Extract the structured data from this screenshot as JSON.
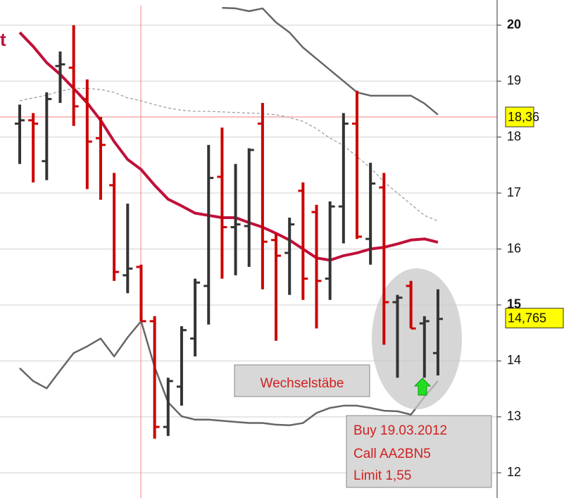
{
  "chart_data": {
    "type": "ohlc",
    "title": "t",
    "ylim": [
      11.55,
      20.45
    ],
    "yticks": [
      12,
      13,
      14,
      15,
      16,
      17,
      18,
      19,
      20
    ],
    "grid": true,
    "ohlc": {
      "up_color": "#333333",
      "down_color": "#cc0000",
      "open": [
        18.24,
        18.3,
        17.57,
        19.27,
        19.24,
        18.68,
        17.98,
        17.14,
        15.53,
        15.68,
        14.71,
        12.82,
        13.54,
        14.4,
        15.34,
        17.29,
        16.39,
        16.41,
        18.24,
        16.16,
        15.93,
        17.04,
        16.66,
        15.47,
        16.76,
        18.24,
        16.18,
        17.1,
        15.05,
        15.34,
        14.67,
        14.14
      ],
      "high": [
        18.58,
        18.43,
        18.8,
        19.53,
        20.0,
        19.03,
        18.36,
        17.36,
        16.81,
        15.72,
        14.8,
        13.7,
        14.62,
        15.47,
        17.86,
        18.17,
        17.52,
        17.8,
        18.61,
        16.28,
        16.56,
        17.19,
        16.79,
        16.85,
        18.43,
        18.83,
        17.54,
        17.36,
        15.18,
        15.43,
        14.8,
        15.28
      ],
      "low": [
        17.52,
        17.19,
        17.23,
        18.61,
        18.2,
        17.07,
        16.88,
        15.43,
        15.21,
        14.71,
        12.61,
        12.66,
        13.2,
        14.08,
        14.65,
        15.47,
        15.53,
        15.68,
        15.28,
        14.36,
        15.18,
        15.09,
        14.58,
        15.09,
        16.1,
        16.18,
        15.72,
        14.29,
        13.7,
        14.58,
        13.7,
        13.74
      ],
      "close": [
        18.3,
        18.24,
        18.68,
        19.3,
        18.55,
        17.92,
        17.86,
        15.59,
        15.65,
        14.71,
        12.82,
        13.64,
        14.55,
        15.4,
        17.27,
        16.39,
        16.44,
        17.77,
        16.13,
        15.88,
        16.44,
        15.47,
        15.43,
        16.76,
        18.24,
        16.22,
        17.17,
        15.05,
        15.13,
        14.58,
        14.71,
        14.75
      ]
    },
    "lines": [
      {
        "color": "#c0103a",
        "width": 4,
        "values": [
          19.87,
          19.62,
          19.33,
          19.12,
          18.87,
          18.61,
          18.3,
          17.92,
          17.6,
          17.42,
          17.14,
          16.89,
          16.77,
          16.64,
          16.6,
          16.56,
          16.56,
          16.47,
          16.39,
          16.28,
          16.16,
          16.0,
          15.84,
          15.8,
          15.88,
          15.93,
          16.0,
          16.03,
          16.09,
          16.16,
          16.18,
          16.12
        ]
      },
      {
        "color": "#666666",
        "width": 2.5,
        "values": [
          null,
          null,
          null,
          null,
          null,
          null,
          null,
          null,
          null,
          null,
          null,
          null,
          null,
          null,
          null,
          20.31,
          20.3,
          20.25,
          20.3,
          20.05,
          19.87,
          19.6,
          19.4,
          19.2,
          19.0,
          18.8,
          18.74,
          18.74,
          18.74,
          18.74,
          18.6,
          18.4
        ]
      },
      {
        "color": "#666666",
        "width": 2.5,
        "values": [
          13.87,
          13.64,
          13.51,
          13.83,
          14.14,
          14.26,
          14.4,
          14.08,
          14.42,
          14.71,
          13.89,
          13.26,
          13.01,
          12.95,
          12.95,
          12.93,
          12.91,
          12.89,
          12.89,
          12.86,
          12.85,
          12.89,
          13.07,
          13.16,
          13.2,
          13.2,
          13.16,
          13.11,
          13.1,
          13.04,
          13.36,
          13.64
        ]
      },
      {
        "color": "#999999",
        "width": 1.2,
        "dashed": true,
        "values": [
          18.65,
          18.7,
          18.75,
          18.82,
          18.87,
          18.87,
          18.85,
          18.8,
          18.7,
          18.65,
          18.58,
          18.52,
          18.48,
          18.46,
          18.46,
          18.45,
          18.44,
          18.43,
          18.42,
          18.4,
          18.35,
          18.28,
          18.15,
          17.98,
          17.85,
          17.65,
          17.45,
          17.2,
          17.0,
          16.8,
          16.6,
          16.5
        ]
      }
    ],
    "crosshair": {
      "value": 18.36,
      "label": "18,36"
    },
    "last_price": {
      "value": 14.765,
      "label": "14,765"
    },
    "annotations": {
      "pattern": "Wechselstäbe",
      "signal": [
        "Buy 19.03.2012",
        "Call AA2BN5",
        "Limit 1,55"
      ]
    }
  }
}
